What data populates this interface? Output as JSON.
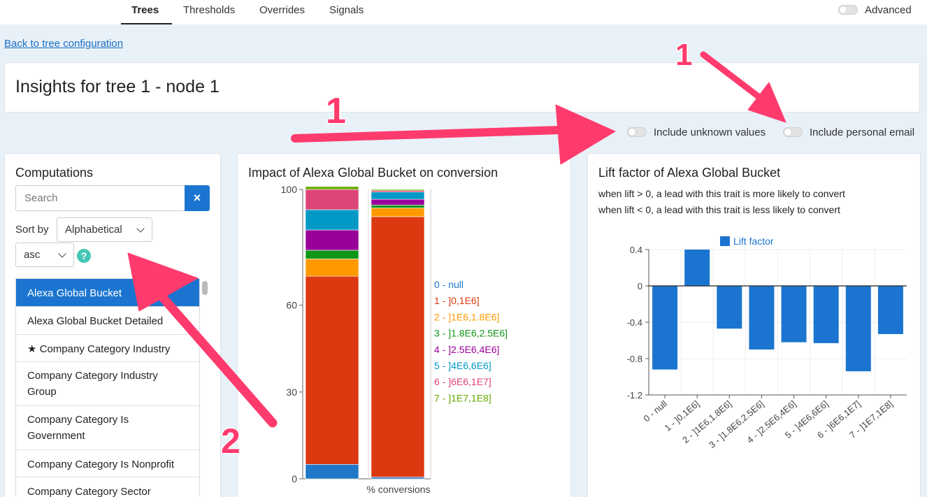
{
  "nav": {
    "tabs": [
      "Trees",
      "Thresholds",
      "Overrides",
      "Signals"
    ],
    "active": "Trees",
    "advanced_label": "Advanced"
  },
  "back_link": "Back to tree configuration",
  "page_title": "Insights for tree 1 - node 1",
  "toggles": {
    "unknown_values": "Include unknown values",
    "personal_email": "Include personal email"
  },
  "computations": {
    "title": "Computations",
    "search_placeholder": "Search",
    "clear_icon": "×",
    "sort_label": "Sort by",
    "sort_value": "Alphabetical",
    "order_value": "asc",
    "help_icon": "?",
    "items": [
      {
        "label": "Alexa Global Bucket",
        "active": true
      },
      {
        "label": "Alexa Global Bucket Detailed"
      },
      {
        "label": "Company Category Industry",
        "starred": true
      },
      {
        "label": "Company Category Industry Group"
      },
      {
        "label": "Company Category Is Government"
      },
      {
        "label": "Company Category Is Nonprofit"
      },
      {
        "label": "Company Category Sector"
      }
    ]
  },
  "annotations": {
    "a1": "1",
    "a2": "1",
    "a3": "2"
  },
  "colors": {
    "accent": "#1b75d0",
    "annotation": "#ff3b6e",
    "series": [
      "#1f77c7",
      "#dc3911",
      "#ff9900",
      "#109618",
      "#990099",
      "#0099c6",
      "#dd4477",
      "#66aa00"
    ]
  },
  "chart_data": [
    {
      "type": "bar",
      "stacked": true,
      "title": "Impact of Alexa Global Bucket on conversion",
      "xlabel": "% conversions",
      "ylim": [
        0,
        100
      ],
      "yticks": [
        "0",
        "30",
        "60",
        "100"
      ],
      "legend": [
        "0 - null",
        "1 - ]0,1E6]",
        "2 - ]1E6,1.8E6]",
        "3 - ]1.8E6,2.5E6]",
        "4 - ]2.5E6,4E6]",
        "5 - ]4E6,6E6]",
        "6 - ]6E6,1E7]",
        "7 - ]1E7,1E8]"
      ],
      "legend_position": "right",
      "columns": [
        {
          "values": [
            5,
            65,
            6,
            3,
            7,
            7,
            7,
            1
          ]
        },
        {
          "values": [
            0.6,
            90,
            3,
            1,
            2,
            2.5,
            0.5,
            0.4
          ]
        }
      ]
    },
    {
      "type": "bar",
      "title": "Lift factor of Alexa Global Bucket",
      "subtitle_lines": [
        "when lift > 0, a lead with this trait is more likely to convert",
        "when lift < 0, a lead with this trait is less likely to convert"
      ],
      "legend": "Lift factor",
      "legend_position": "top",
      "categories": [
        "0 - null",
        "1 - ]0,1E6]",
        "2 - ]1E6,1.8E6]",
        "3 - ]1.8E6,2.5E6]",
        "4 - ]2.5E6,4E6]",
        "5 - ]4E6,6E6]",
        "6 - ]6E6,1E7]",
        "7 - ]1E7,1E8]"
      ],
      "values": [
        -0.92,
        0.4,
        -0.47,
        -0.7,
        -0.62,
        -0.63,
        -0.94,
        -0.53
      ],
      "ylim": [
        -1.2,
        0.4
      ],
      "yticks": [
        "0.4",
        "0",
        "-0.4",
        "-0.8",
        "-1.2"
      ],
      "grid": true
    }
  ]
}
